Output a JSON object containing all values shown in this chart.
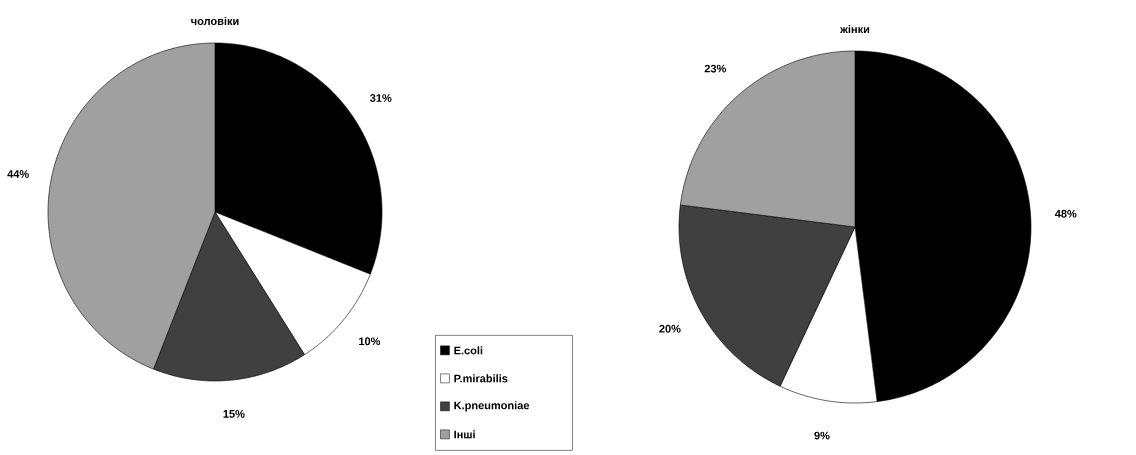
{
  "chart_data": [
    {
      "type": "pie",
      "title": "чоловіки",
      "categories": [
        "E.coli",
        "P.mirabilis",
        "K.pneumoniae",
        "Інші"
      ],
      "values": [
        31,
        10,
        15,
        44
      ],
      "value_labels": [
        "31%",
        "10%",
        "15%",
        "44%"
      ],
      "colors": [
        "#000000",
        "#ffffff",
        "#404040",
        "#a0a0a0"
      ],
      "legend": "bottom right"
    },
    {
      "type": "pie",
      "title": "жінки",
      "categories": [
        null,
        null,
        null,
        null
      ],
      "values": [
        48,
        9,
        20,
        23
      ],
      "value_labels": [
        "48%",
        "9%",
        "20%",
        "23%"
      ],
      "colors": [
        "#000000",
        "#ffffff",
        "#404040",
        "#a0a0a0"
      ]
    }
  ]
}
